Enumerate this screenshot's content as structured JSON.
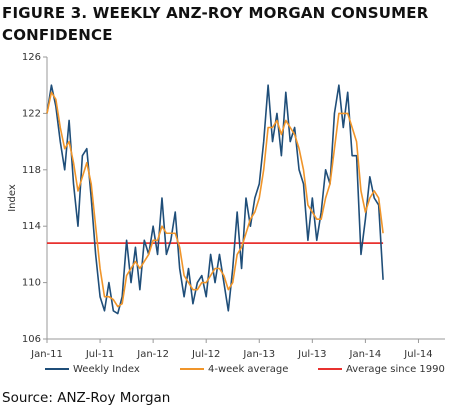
{
  "chart_data": {
    "type": "line",
    "title": "FIGURE 3. WEEKLY ANZ-ROY MORGAN CONSUMER CONFIDENCE",
    "y_label": "Index",
    "source": "Source: ANZ-Roy Morgan",
    "x": [
      0,
      0.5,
      1,
      1.5,
      2,
      2.5,
      3,
      3.5,
      4,
      4.5,
      5,
      5.5,
      6,
      6.5,
      7,
      7.5,
      8,
      8.5,
      9,
      9.5,
      10,
      10.5,
      11,
      11.5,
      12,
      12.5,
      13,
      13.5,
      14,
      14.5,
      15,
      15.5,
      16,
      16.5,
      17,
      17.5,
      18,
      18.5,
      19,
      19.5,
      20,
      20.5,
      21,
      21.5,
      22,
      22.5,
      23,
      23.5,
      24,
      24.5,
      25,
      25.5,
      26,
      26.5,
      27,
      27.5,
      28,
      28.5,
      29,
      29.5,
      30,
      30.5,
      31,
      31.5,
      32,
      32.5,
      33,
      33.5,
      34,
      34.5,
      35,
      35.5,
      36,
      36.5,
      37,
      37.5,
      38
    ],
    "series": [
      {
        "name": "Weekly Index",
        "color": "#1f4e79",
        "values": [
          122,
          124,
          122.5,
          120,
          118,
          121.5,
          117,
          114,
          119,
          119.5,
          116,
          112,
          109,
          108,
          110,
          108,
          107.8,
          109,
          113,
          110,
          112.5,
          109.5,
          113,
          112,
          114,
          112,
          116,
          112,
          113,
          115,
          111,
          109,
          111,
          108.5,
          110,
          110.5,
          109,
          112,
          110,
          112,
          110,
          108,
          111,
          115,
          111,
          116,
          114,
          116,
          117,
          120,
          124,
          120,
          122,
          119,
          123.5,
          120,
          121,
          118,
          117,
          113,
          116,
          113,
          115,
          118,
          117,
          122,
          124,
          121,
          123.5,
          119,
          119,
          112,
          114.5,
          117.5,
          116,
          115.5,
          110.2
        ]
      },
      {
        "name": "4-week average",
        "color": "#f0952a",
        "values": [
          122,
          123.5,
          123,
          121,
          119.5,
          120,
          118.5,
          116.5,
          117.5,
          118.5,
          117,
          114,
          111,
          109,
          109,
          108.8,
          108.3,
          108.5,
          110.5,
          111,
          111.5,
          111,
          111.5,
          112,
          113,
          113,
          114,
          113.5,
          113.5,
          113.5,
          112.5,
          110.5,
          110,
          109.5,
          109.5,
          110,
          110,
          110.5,
          111,
          111,
          110.5,
          109.5,
          110,
          112,
          112.5,
          113.5,
          114.5,
          115,
          116,
          118,
          121,
          121,
          121.5,
          120.5,
          121.5,
          121,
          120.5,
          119.5,
          118,
          115.5,
          115,
          114.5,
          114.5,
          116,
          117,
          119.5,
          122,
          122,
          122,
          121,
          120,
          116.5,
          115,
          116,
          116.5,
          116,
          113.5
        ]
      }
    ],
    "reference_line": {
      "name": "Average since 1990",
      "color": "#e8312f",
      "value": 112.8
    },
    "xlim": [
      0,
      45
    ],
    "xticks": [
      {
        "value": 0,
        "label": "Jan-11"
      },
      {
        "value": 6,
        "label": "Jul-11"
      },
      {
        "value": 12,
        "label": "Jan-12"
      },
      {
        "value": 18,
        "label": "Jul-12"
      },
      {
        "value": 24,
        "label": "Jan-13"
      },
      {
        "value": 30,
        "label": "Jul-13"
      },
      {
        "value": 36,
        "label": "Jan-14"
      },
      {
        "value": 42,
        "label": "Jul-14"
      }
    ],
    "ylim": [
      106,
      126
    ],
    "yticks": [
      106,
      110,
      114,
      118,
      122,
      126
    ],
    "grid": false
  }
}
